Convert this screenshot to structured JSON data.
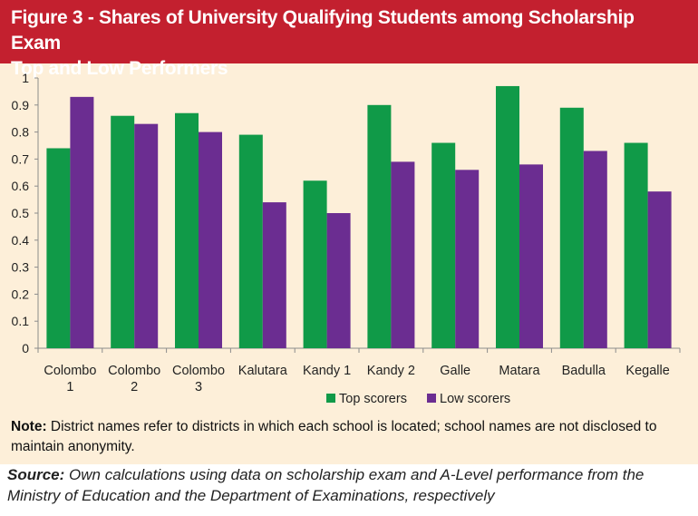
{
  "figure": {
    "title_line1": "Figure 3 - Shares of University Qualifying Students among Scholarship Exam",
    "title_line2": "Top and Low Performers"
  },
  "colors": {
    "title_bg": "#c3202f",
    "panel_bg": "#fdefd9",
    "top_scorers": "#109a48",
    "low_scorers": "#6b2d91"
  },
  "chart_data": {
    "type": "bar",
    "categories": [
      [
        "Colombo",
        "1"
      ],
      [
        "Colombo",
        "2"
      ],
      [
        "Colombo",
        "3"
      ],
      [
        "Kalutara"
      ],
      [
        "Kandy 1"
      ],
      [
        "Kandy 2"
      ],
      [
        "Galle"
      ],
      [
        "Matara"
      ],
      [
        "Badulla"
      ],
      [
        "Kegalle"
      ]
    ],
    "series": [
      {
        "name": "Top scorers",
        "color": "#109a48",
        "values": [
          0.74,
          0.86,
          0.87,
          0.79,
          0.62,
          0.9,
          0.76,
          0.97,
          0.89,
          0.76
        ]
      },
      {
        "name": "Low scorers",
        "color": "#6b2d91",
        "values": [
          0.93,
          0.83,
          0.8,
          0.54,
          0.5,
          0.69,
          0.66,
          0.68,
          0.73,
          0.58
        ]
      }
    ],
    "ylim": [
      0,
      1
    ],
    "yticks": [
      "0",
      "0.1",
      "0.2",
      "0.3",
      "0.4",
      "0.5",
      "0.6",
      "0.7",
      "0.8",
      "0.9",
      "1"
    ],
    "grid": false,
    "legend_position": "bottom"
  },
  "note": {
    "label": "Note:",
    "text": " District names refer to districts in which each school is located; school names are not disclosed to maintain anonymity."
  },
  "source": {
    "label": "Source:",
    "text": " Own calculations using data on scholarship exam and A-Level performance from the Ministry of Education and the Department of Examinations, respectively"
  }
}
